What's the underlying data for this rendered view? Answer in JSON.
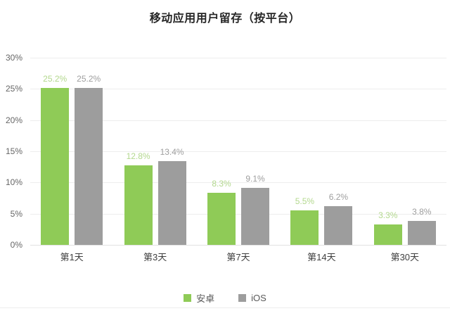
{
  "title": "移动应用用户留存（按平台）",
  "colors": {
    "android_bar": "#8fcb57",
    "android_label": "#b3d88e",
    "ios_bar": "#9d9d9d",
    "ios_label": "#9e9e9e",
    "grid": "#ededed",
    "axis_text": "#666666",
    "category_text": "#3f3f3f",
    "title_text": "#262626"
  },
  "chart_data": {
    "type": "bar",
    "title": "移动应用用户留存（按平台）",
    "categories": [
      "第1天",
      "第3天",
      "第7天",
      "第14天",
      "第30天"
    ],
    "series": [
      {
        "name": "安卓",
        "color_key": "android_bar",
        "label_color_key": "android_label",
        "values": [
          25.2,
          12.8,
          8.3,
          5.5,
          3.3
        ]
      },
      {
        "name": "iOS",
        "color_key": "ios_bar",
        "label_color_key": "ios_label",
        "values": [
          25.2,
          13.4,
          9.1,
          6.2,
          3.8
        ]
      }
    ],
    "value_suffix": "%",
    "data_labels": [
      "25.2%",
      "12.8%",
      "8.3%",
      "5.5%",
      "3.3%",
      "25.2%",
      "13.4%",
      "9.1%",
      "6.2%",
      "3.8%"
    ],
    "xlabel": "",
    "ylabel": "",
    "ylim": [
      0,
      30
    ],
    "ytick_step": 5,
    "yticks": [
      "0%",
      "5%",
      "10%",
      "15%",
      "20%",
      "25%",
      "30%"
    ],
    "grid": true,
    "legend_position": "bottom"
  },
  "legend": {
    "items": [
      {
        "label": "安卓"
      },
      {
        "label": "iOS"
      }
    ]
  }
}
